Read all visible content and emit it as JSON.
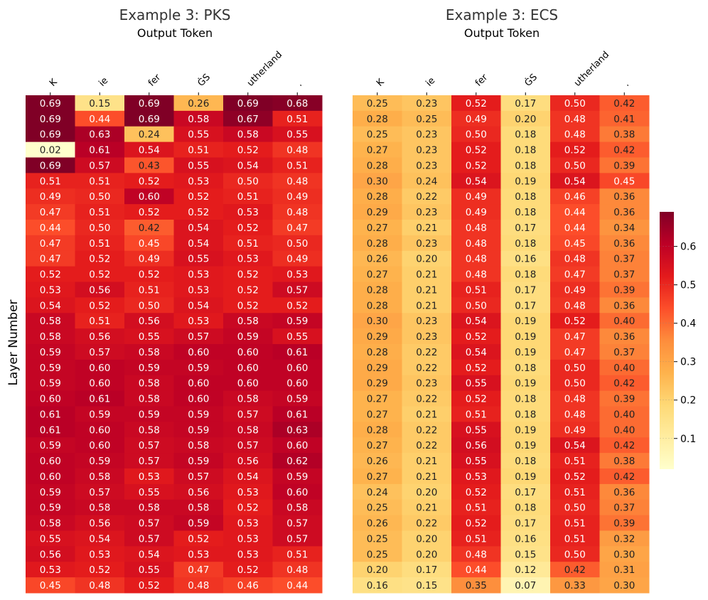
{
  "chart_data": [
    {
      "type": "heatmap",
      "title": "Example 3: PKS",
      "xlabel": "Output Token",
      "ylabel": "Layer Number",
      "x_categories": [
        "K",
        "ie",
        "fer",
        "ĠS",
        "utherland",
        "."
      ],
      "values": [
        [
          0.69,
          0.15,
          0.69,
          0.26,
          0.69,
          0.68
        ],
        [
          0.69,
          0.44,
          0.69,
          0.58,
          0.67,
          0.51
        ],
        [
          0.69,
          0.63,
          0.24,
          0.55,
          0.58,
          0.55
        ],
        [
          0.02,
          0.61,
          0.54,
          0.51,
          0.52,
          0.48
        ],
        [
          0.69,
          0.57,
          0.43,
          0.55,
          0.54,
          0.51
        ],
        [
          0.51,
          0.51,
          0.52,
          0.53,
          0.5,
          0.48
        ],
        [
          0.49,
          0.5,
          0.6,
          0.52,
          0.51,
          0.49
        ],
        [
          0.47,
          0.51,
          0.52,
          0.52,
          0.53,
          0.48
        ],
        [
          0.44,
          0.5,
          0.42,
          0.54,
          0.52,
          0.47
        ],
        [
          0.47,
          0.51,
          0.45,
          0.54,
          0.51,
          0.5
        ],
        [
          0.47,
          0.52,
          0.49,
          0.55,
          0.53,
          0.49
        ],
        [
          0.52,
          0.52,
          0.52,
          0.53,
          0.52,
          0.53
        ],
        [
          0.53,
          0.56,
          0.51,
          0.53,
          0.52,
          0.57
        ],
        [
          0.54,
          0.52,
          0.5,
          0.54,
          0.52,
          0.52
        ],
        [
          0.58,
          0.51,
          0.56,
          0.53,
          0.58,
          0.59
        ],
        [
          0.58,
          0.56,
          0.55,
          0.57,
          0.59,
          0.55
        ],
        [
          0.59,
          0.57,
          0.58,
          0.6,
          0.6,
          0.61
        ],
        [
          0.59,
          0.6,
          0.59,
          0.59,
          0.6,
          0.6
        ],
        [
          0.59,
          0.6,
          0.58,
          0.6,
          0.6,
          0.6
        ],
        [
          0.6,
          0.61,
          0.58,
          0.6,
          0.58,
          0.59
        ],
        [
          0.61,
          0.59,
          0.59,
          0.59,
          0.57,
          0.61
        ],
        [
          0.61,
          0.6,
          0.58,
          0.59,
          0.58,
          0.63
        ],
        [
          0.59,
          0.6,
          0.57,
          0.58,
          0.57,
          0.6
        ],
        [
          0.6,
          0.59,
          0.57,
          0.59,
          0.56,
          0.62
        ],
        [
          0.6,
          0.58,
          0.53,
          0.57,
          0.54,
          0.59
        ],
        [
          0.59,
          0.57,
          0.55,
          0.56,
          0.53,
          0.6
        ],
        [
          0.59,
          0.58,
          0.58,
          0.58,
          0.52,
          0.58
        ],
        [
          0.58,
          0.56,
          0.57,
          0.59,
          0.53,
          0.57
        ],
        [
          0.55,
          0.54,
          0.57,
          0.52,
          0.53,
          0.57
        ],
        [
          0.56,
          0.53,
          0.54,
          0.53,
          0.53,
          0.51
        ],
        [
          0.53,
          0.52,
          0.55,
          0.47,
          0.52,
          0.48
        ],
        [
          0.45,
          0.48,
          0.52,
          0.48,
          0.46,
          0.44
        ]
      ]
    },
    {
      "type": "heatmap",
      "title": "Example 3: ECS",
      "xlabel": "Output Token",
      "ylabel": "",
      "x_categories": [
        "K",
        "ie",
        "fer",
        "ĠS",
        "utherland",
        "."
      ],
      "values": [
        [
          0.25,
          0.23,
          0.52,
          0.17,
          0.5,
          0.42
        ],
        [
          0.28,
          0.25,
          0.49,
          0.2,
          0.48,
          0.41
        ],
        [
          0.25,
          0.23,
          0.5,
          0.18,
          0.48,
          0.38
        ],
        [
          0.27,
          0.23,
          0.52,
          0.18,
          0.52,
          0.42
        ],
        [
          0.28,
          0.23,
          0.52,
          0.18,
          0.5,
          0.39
        ],
        [
          0.3,
          0.24,
          0.54,
          0.19,
          0.54,
          0.45
        ],
        [
          0.28,
          0.22,
          0.49,
          0.18,
          0.46,
          0.36
        ],
        [
          0.29,
          0.23,
          0.49,
          0.18,
          0.44,
          0.36
        ],
        [
          0.27,
          0.21,
          0.48,
          0.17,
          0.44,
          0.34
        ],
        [
          0.28,
          0.23,
          0.48,
          0.18,
          0.45,
          0.36
        ],
        [
          0.26,
          0.2,
          0.48,
          0.16,
          0.48,
          0.37
        ],
        [
          0.27,
          0.21,
          0.48,
          0.18,
          0.47,
          0.37
        ],
        [
          0.28,
          0.21,
          0.51,
          0.17,
          0.49,
          0.39
        ],
        [
          0.28,
          0.21,
          0.5,
          0.17,
          0.48,
          0.36
        ],
        [
          0.3,
          0.23,
          0.54,
          0.19,
          0.52,
          0.4
        ],
        [
          0.29,
          0.23,
          0.52,
          0.19,
          0.47,
          0.36
        ],
        [
          0.28,
          0.22,
          0.54,
          0.19,
          0.47,
          0.37
        ],
        [
          0.29,
          0.22,
          0.52,
          0.18,
          0.5,
          0.4
        ],
        [
          0.29,
          0.23,
          0.55,
          0.19,
          0.5,
          0.42
        ],
        [
          0.27,
          0.22,
          0.52,
          0.18,
          0.48,
          0.39
        ],
        [
          0.27,
          0.21,
          0.51,
          0.18,
          0.48,
          0.4
        ],
        [
          0.28,
          0.22,
          0.55,
          0.19,
          0.49,
          0.4
        ],
        [
          0.27,
          0.22,
          0.56,
          0.19,
          0.54,
          0.42
        ],
        [
          0.26,
          0.21,
          0.55,
          0.18,
          0.51,
          0.38
        ],
        [
          0.27,
          0.21,
          0.53,
          0.19,
          0.52,
          0.42
        ],
        [
          0.24,
          0.2,
          0.52,
          0.17,
          0.51,
          0.36
        ],
        [
          0.25,
          0.21,
          0.51,
          0.18,
          0.5,
          0.37
        ],
        [
          0.26,
          0.22,
          0.52,
          0.17,
          0.51,
          0.39
        ],
        [
          0.25,
          0.2,
          0.51,
          0.16,
          0.51,
          0.32
        ],
        [
          0.25,
          0.2,
          0.48,
          0.15,
          0.5,
          0.3
        ],
        [
          0.2,
          0.17,
          0.44,
          0.12,
          0.42,
          0.31
        ],
        [
          0.16,
          0.15,
          0.35,
          0.07,
          0.33,
          0.3
        ]
      ]
    }
  ],
  "colorbar": {
    "colormap": "YlOrRd",
    "range": [
      0.02,
      0.69
    ],
    "ticks": [
      0.1,
      0.2,
      0.3,
      0.4,
      0.5,
      0.6
    ],
    "tick_labels": [
      "0.1",
      "0.2",
      "0.3",
      "0.4",
      "0.5",
      "0.6"
    ]
  },
  "colors": {
    "stops": [
      "#ffffcc",
      "#ffeda0",
      "#fed976",
      "#feb24c",
      "#fd8d3c",
      "#fc4e2a",
      "#e31a1c",
      "#bd0026",
      "#800026"
    ]
  }
}
